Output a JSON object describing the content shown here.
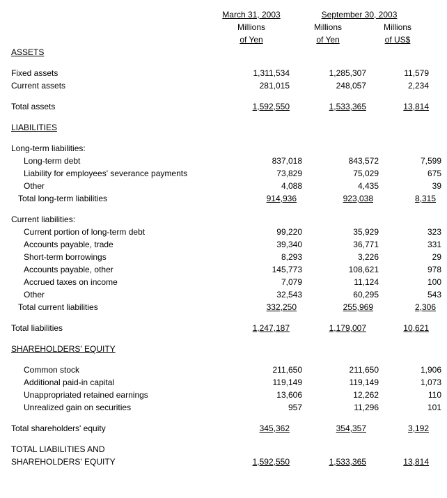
{
  "header": {
    "date1": "March 31, 2003",
    "date2": "September 30, 2003",
    "unit_yen_l1": "Millions",
    "unit_yen_l2": "of Yen",
    "unit_usd_l1": "Millions",
    "unit_usd_l2": "of US$"
  },
  "s": {
    "assets": "ASSETS",
    "liabilities": "LIABILITIES",
    "equity": "SHAREHOLDERS' EQUITY",
    "total_lia_eq_l1": "TOTAL LIABILITIES AND",
    "total_lia_eq_l2": "SHAREHOLDERS' EQUITY"
  },
  "r": {
    "fixed_assets": {
      "label": "Fixed assets",
      "c1": "1,311,534",
      "c2": "1,285,307",
      "c3": "11,579"
    },
    "current_assets": {
      "label": "Current assets",
      "c1": "281,015",
      "c2": "248,057",
      "c3": "2,234"
    },
    "total_assets": {
      "label": "Total assets",
      "c1": "1,592,550",
      "c2": "1,533,365",
      "c3": "13,814"
    },
    "lt_header": {
      "label": "Long-term liabilities:"
    },
    "lt_debt": {
      "label": "Long-term debt",
      "c1": "837,018",
      "c2": "843,572",
      "c3": "7,599"
    },
    "lt_sev": {
      "label": "Liability for employees' severance payments",
      "c1": "73,829",
      "c2": "75,029",
      "c3": "675"
    },
    "lt_other": {
      "label": "Other",
      "c1": "4,088",
      "c2": "4,435",
      "c3": "39"
    },
    "lt_total": {
      "label": "Total long-term liabilities",
      "c1": "914,936",
      "c2": "923,038",
      "c3": "8,315"
    },
    "cl_header": {
      "label": "Current liabilities:"
    },
    "cl_portion": {
      "label": "Current portion of long-term debt",
      "c1": "99,220",
      "c2": "35,929",
      "c3": "323"
    },
    "cl_ap_trade": {
      "label": "Accounts payable, trade",
      "c1": "39,340",
      "c2": "36,771",
      "c3": "331"
    },
    "cl_st_borrow": {
      "label": "Short-term borrowings",
      "c1": "8,293",
      "c2": "3,226",
      "c3": "29"
    },
    "cl_ap_other": {
      "label": "Accounts payable, other",
      "c1": "145,773",
      "c2": "108,621",
      "c3": "978"
    },
    "cl_tax": {
      "label": "Accrued taxes on income",
      "c1": "7,079",
      "c2": "11,124",
      "c3": "100"
    },
    "cl_other": {
      "label": "Other",
      "c1": "32,543",
      "c2": "60,295",
      "c3": "543"
    },
    "cl_total": {
      "label": "Total current liabilities",
      "c1": "332,250",
      "c2": "255,969",
      "c3": "2,306"
    },
    "total_liab": {
      "label": "Total liabilities",
      "c1": "1,247,187",
      "c2": "1,179,007",
      "c3": "10,621"
    },
    "eq_common": {
      "label": "Common stock",
      "c1": "211,650",
      "c2": "211,650",
      "c3": "1,906"
    },
    "eq_paidin": {
      "label": "Additional paid-in capital",
      "c1": "119,149",
      "c2": "119,149",
      "c3": "1,073"
    },
    "eq_retained": {
      "label": "Unappropriated retained earnings",
      "c1": "13,606",
      "c2": "12,262",
      "c3": "110"
    },
    "eq_gain": {
      "label": "Unrealized gain on securities",
      "c1": "957",
      "c2": "11,296",
      "c3": "101"
    },
    "eq_total": {
      "label": "Total shareholders' equity",
      "c1": "345,362",
      "c2": "354,357",
      "c3": "3,192"
    },
    "grand_total": {
      "c1": "1,592,550",
      "c2": "1,533,365",
      "c3": "13,814"
    }
  }
}
